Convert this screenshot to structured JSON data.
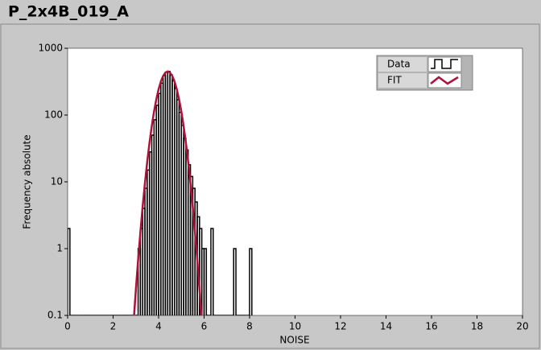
{
  "chart_data": {
    "type": "histogram",
    "title": "P_2x4B_019_A",
    "x_label": "NOISE",
    "y_label": "Frequency absolute",
    "bins": [
      0,
      0.1,
      0.2,
      0.3,
      0.4,
      0.5,
      0.6,
      0.7,
      0.8,
      0.9,
      1,
      1.1,
      1.2,
      1.3,
      1.4,
      1.5,
      1.6,
      1.7,
      1.8,
      1.9,
      2,
      2.1,
      2.2,
      2.3,
      2.4,
      2.5,
      2.6,
      2.7,
      2.8,
      2.9,
      3,
      3.1,
      3.2,
      3.3,
      3.4,
      3.5,
      3.6,
      3.7,
      3.8,
      3.9,
      4,
      4.1,
      4.2,
      4.3,
      4.4,
      4.5,
      4.6,
      4.7,
      4.8,
      4.9,
      5,
      5.1,
      5.2,
      5.3,
      5.4,
      5.5,
      5.6,
      5.7,
      5.8,
      5.9,
      6,
      6.1,
      6.2,
      6.3,
      6.4,
      6.5,
      6.6,
      6.7,
      6.8,
      6.9,
      7,
      7.1,
      7.2,
      7.3,
      7.4,
      7.5,
      7.6,
      7.7,
      7.8,
      7.9,
      8,
      8.1
    ],
    "series": [
      {
        "name": "Data",
        "color": "#000000",
        "values": [
          2,
          0,
          0,
          0,
          0,
          0,
          0,
          0,
          0,
          0,
          0,
          0,
          0,
          0,
          0,
          0,
          0,
          0,
          0,
          0,
          0,
          0,
          0,
          0,
          0,
          0,
          0,
          0,
          0,
          0,
          0,
          1,
          2,
          4,
          8,
          15,
          28,
          50,
          85,
          140,
          210,
          300,
          390,
          440,
          450,
          400,
          330,
          250,
          170,
          110,
          70,
          45,
          30,
          18,
          12,
          8,
          5,
          3,
          2,
          1,
          1,
          0,
          0,
          2,
          0,
          0,
          0,
          0,
          0,
          0,
          0,
          0,
          0,
          1,
          0,
          0,
          0,
          0,
          0,
          0,
          1
        ]
      },
      {
        "name": "FIT",
        "type": "line",
        "color": "#b0103a",
        "x": [
          2.9,
          3,
          3.1,
          3.2,
          3.3,
          3.4,
          3.5,
          3.6,
          3.7,
          3.8,
          3.9,
          4,
          4.1,
          4.2,
          4.3,
          4.4,
          4.5,
          4.6,
          4.7,
          4.8,
          4.9,
          5,
          5.1,
          5.2,
          5.3,
          5.4,
          5.5,
          5.6,
          5.7,
          5.8,
          5.9
        ],
        "values": [
          0.078,
          0.24,
          0.678,
          1.77,
          4.29,
          9.6,
          20,
          38.4,
          68.4,
          113,
          172,
          243,
          318,
          386,
          433,
          450,
          433,
          386,
          318,
          243,
          172,
          113,
          68.4,
          38.4,
          20,
          9.6,
          4.29,
          1.77,
          0.678,
          0.24,
          0.078
        ]
      }
    ],
    "xlim": [
      0,
      20
    ],
    "xticks": [
      0,
      2,
      4,
      6,
      8,
      10,
      12,
      14,
      16,
      18,
      20
    ],
    "ylim": [
      0.1,
      1000
    ],
    "yticks": [
      0.1,
      1,
      10,
      100,
      1000
    ],
    "log_y": true,
    "legend": "upper-right"
  }
}
